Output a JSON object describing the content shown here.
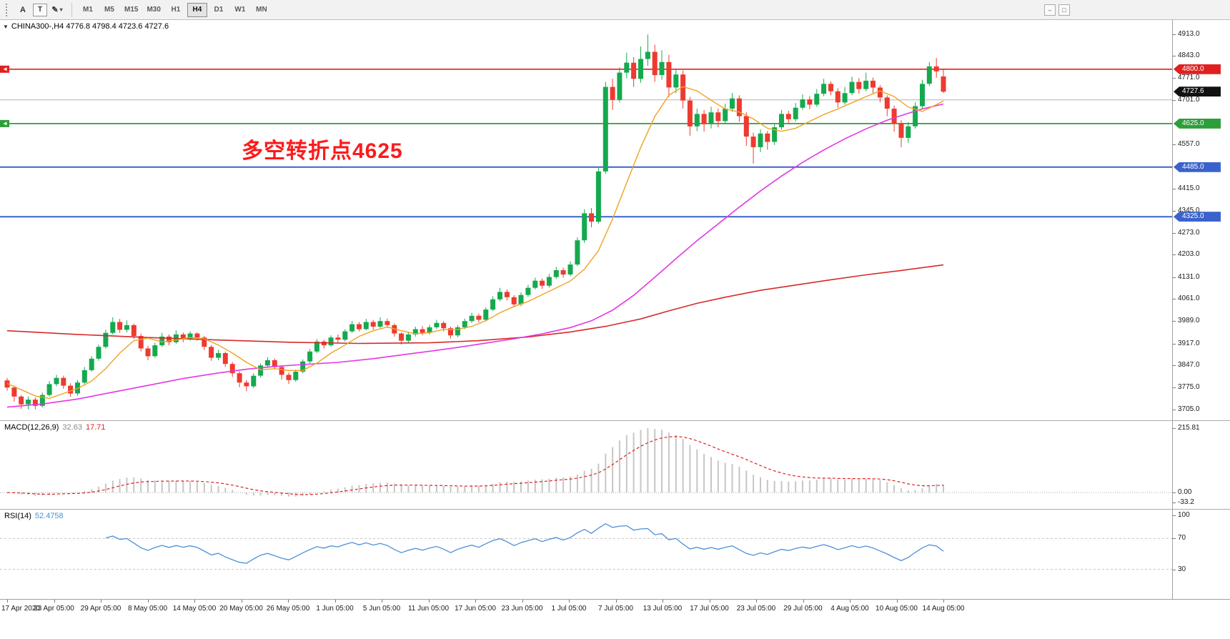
{
  "colors": {
    "up": "#15a94f",
    "down": "#ee3a2f",
    "ma_fast": "#efa322",
    "ma_mid": "#e437e4",
    "ma_slow": "#d62a2a",
    "macd_hist": "#c6c6c6",
    "macd_signal": "#e02020",
    "rsi": "#4a90d9"
  },
  "icons": {
    "expander": "▼",
    "caret": "▾"
  },
  "toolbar": {
    "tools": [
      {
        "name": "annotation-a",
        "glyph": "A"
      },
      {
        "name": "text-label",
        "glyph": "T"
      },
      {
        "name": "draw-shapes",
        "glyph": "✎"
      }
    ],
    "timeframes": [
      "M1",
      "M5",
      "M15",
      "M30",
      "H1",
      "H4",
      "D1",
      "W1",
      "MN"
    ],
    "active_timeframe": "H4",
    "mini_buttons": [
      {
        "name": "minimize",
        "glyph": "–"
      },
      {
        "name": "restore",
        "glyph": "□"
      }
    ]
  },
  "main_chart": {
    "symbol_line": "CHINA300-,H4  4776.8 4798.4 4723.6 4727.6",
    "annotation_text": "多空转折点4625",
    "price_ticks": [
      "4913.0",
      "4843.0",
      "4771.0",
      "4701.0",
      "4557.0",
      "4415.0",
      "4345.0",
      "4273.0",
      "4203.0",
      "4131.0",
      "4061.0",
      "3989.0",
      "3917.0",
      "3847.0",
      "3775.0",
      "3705.0"
    ],
    "tagged_prices": [
      {
        "label": "4800.0",
        "value": 4800.0,
        "color": "#e02020"
      },
      {
        "label": "4727.6",
        "value": 4727.6,
        "color": "#111111"
      },
      {
        "label": "4625.0",
        "value": 4625.0,
        "color": "#2e9e3a"
      },
      {
        "label": "4485.0",
        "value": 4485.0,
        "color": "#3b62cc"
      },
      {
        "label": "4325.0",
        "value": 4325.0,
        "color": "#3b62cc"
      }
    ]
  },
  "macd_panel": {
    "label": "MACD(12,26,9)",
    "value_main": "32.63",
    "value_signal": "17.71",
    "scale": [
      "215.81",
      "0.00",
      "-33.2"
    ]
  },
  "rsi_panel": {
    "label": "RSI(14)",
    "value": "52.4758",
    "scale": [
      "100",
      "70",
      "30"
    ]
  },
  "time_axis": [
    "17 Apr 2020",
    "23 Apr 05:00",
    "29 Apr 05:00",
    "8 May 05:00",
    "14 May 05:00",
    "20 May 05:00",
    "26 May 05:00",
    "1 Jun 05:00",
    "5 Jun 05:00",
    "11 Jun 05:00",
    "17 Jun 05:00",
    "23 Jun 05:00",
    "1 Jul 05:00",
    "7 Jul 05:00",
    "13 Jul 05:00",
    "17 Jul 05:00",
    "23 Jul 05:00",
    "29 Jul 05:00",
    "4 Aug 05:00",
    "10 Aug 05:00",
    "14 Aug 05:00"
  ],
  "chart_data": {
    "type": "candlestick",
    "symbol": "CHINA300-",
    "timeframe": "H4",
    "last_bar": {
      "open": 4776.8,
      "high": 4798.4,
      "low": 4723.6,
      "close": 4727.6
    },
    "y_range": [
      3688,
      4940
    ],
    "levels": [
      {
        "value": 4800,
        "color": "#e02020",
        "w": 1.6,
        "marker": true
      },
      {
        "value": 4701,
        "color": "#b4b4b4",
        "w": 1,
        "marker": false
      },
      {
        "value": 4625,
        "color": "#2e9e3a",
        "w": 1.8,
        "marker": true
      },
      {
        "value": 4485,
        "color": "#3b62cc",
        "w": 2,
        "marker": false
      },
      {
        "value": 4325,
        "color": "#3b62cc",
        "w": 2,
        "marker": false
      }
    ],
    "candles": [
      [
        3798,
        3806,
        3765,
        3775
      ],
      [
        3775,
        3781,
        3730,
        3746
      ],
      [
        3746,
        3751,
        3706,
        3721
      ],
      [
        3721,
        3746,
        3705,
        3736
      ],
      [
        3736,
        3743,
        3705,
        3716
      ],
      [
        3716,
        3759,
        3711,
        3751
      ],
      [
        3751,
        3796,
        3746,
        3786
      ],
      [
        3786,
        3816,
        3779,
        3806
      ],
      [
        3806,
        3813,
        3771,
        3781
      ],
      [
        3781,
        3789,
        3745,
        3756
      ],
      [
        3756,
        3799,
        3749,
        3791
      ],
      [
        3791,
        3841,
        3786,
        3831
      ],
      [
        3831,
        3876,
        3826,
        3868
      ],
      [
        3868,
        3913,
        3861,
        3906
      ],
      [
        3906,
        3961,
        3901,
        3951
      ],
      [
        3951,
        4001,
        3946,
        3986
      ],
      [
        3986,
        3996,
        3951,
        3961
      ],
      [
        3961,
        3991,
        3953,
        3976
      ],
      [
        3976,
        3981,
        3931,
        3941
      ],
      [
        3941,
        3949,
        3891,
        3901
      ],
      [
        3901,
        3909,
        3863,
        3876
      ],
      [
        3876,
        3919,
        3871,
        3911
      ],
      [
        3911,
        3951,
        3906,
        3939
      ],
      [
        3939,
        3946,
        3911,
        3921
      ],
      [
        3921,
        3959,
        3916,
        3946
      ],
      [
        3946,
        3953,
        3921,
        3931
      ],
      [
        3931,
        3956,
        3926,
        3949
      ],
      [
        3949,
        3953,
        3926,
        3936
      ],
      [
        3936,
        3941,
        3896,
        3906
      ],
      [
        3906,
        3911,
        3861,
        3871
      ],
      [
        3871,
        3896,
        3863,
        3886
      ],
      [
        3886,
        3891,
        3841,
        3851
      ],
      [
        3851,
        3857,
        3809,
        3821
      ],
      [
        3821,
        3827,
        3776,
        3791
      ],
      [
        3791,
        3799,
        3763,
        3779
      ],
      [
        3779,
        3821,
        3773,
        3813
      ],
      [
        3813,
        3853,
        3807,
        3846
      ],
      [
        3846,
        3873,
        3839,
        3863
      ],
      [
        3863,
        3869,
        3833,
        3841
      ],
      [
        3841,
        3847,
        3801,
        3816
      ],
      [
        3816,
        3823,
        3787,
        3799
      ],
      [
        3799,
        3833,
        3793,
        3826
      ],
      [
        3826,
        3866,
        3821,
        3859
      ],
      [
        3859,
        3899,
        3853,
        3891
      ],
      [
        3891,
        3931,
        3886,
        3923
      ],
      [
        3923,
        3929,
        3901,
        3911
      ],
      [
        3911,
        3943,
        3906,
        3936
      ],
      [
        3936,
        3946,
        3919,
        3929
      ],
      [
        3929,
        3963,
        3923,
        3956
      ],
      [
        3956,
        3989,
        3951,
        3979
      ],
      [
        3979,
        3986,
        3956,
        3963
      ],
      [
        3963,
        3996,
        3959,
        3986
      ],
      [
        3986,
        3993,
        3961,
        3971
      ],
      [
        3971,
        4001,
        3966,
        3989
      ],
      [
        3989,
        3997,
        3967,
        3976
      ],
      [
        3976,
        3981,
        3939,
        3949
      ],
      [
        3949,
        3953,
        3913,
        3926
      ],
      [
        3926,
        3953,
        3919,
        3946
      ],
      [
        3946,
        3971,
        3939,
        3963
      ],
      [
        3963,
        3973,
        3943,
        3951
      ],
      [
        3951,
        3977,
        3945,
        3969
      ],
      [
        3969,
        3993,
        3963,
        3983
      ],
      [
        3983,
        3989,
        3956,
        3966
      ],
      [
        3966,
        3971,
        3933,
        3943
      ],
      [
        3943,
        3976,
        3937,
        3969
      ],
      [
        3969,
        3997,
        3963,
        3989
      ],
      [
        3989,
        4016,
        3983,
        4006
      ],
      [
        4006,
        4013,
        3985,
        3993
      ],
      [
        3993,
        4033,
        3989,
        4026
      ],
      [
        4026,
        4069,
        4021,
        4059
      ],
      [
        4059,
        4096,
        4053,
        4083
      ],
      [
        4083,
        4091,
        4056,
        4066
      ],
      [
        4066,
        4073,
        4033,
        4043
      ],
      [
        4043,
        4081,
        4037,
        4073
      ],
      [
        4073,
        4106,
        4067,
        4096
      ],
      [
        4096,
        4129,
        4091,
        4119
      ],
      [
        4119,
        4126,
        4093,
        4103
      ],
      [
        4103,
        4141,
        4097,
        4131
      ],
      [
        4131,
        4163,
        4125,
        4153
      ],
      [
        4153,
        4161,
        4129,
        4139
      ],
      [
        4139,
        4181,
        4133,
        4171
      ],
      [
        4171,
        4259,
        4166,
        4249
      ],
      [
        4249,
        4349,
        4241,
        4336
      ],
      [
        4336,
        4353,
        4291,
        4309
      ],
      [
        4309,
        4486,
        4303,
        4471
      ],
      [
        4471,
        4759,
        4463,
        4743
      ],
      [
        4743,
        4769,
        4669,
        4701
      ],
      [
        4701,
        4806,
        4693,
        4789
      ],
      [
        4789,
        4853,
        4771,
        4821
      ],
      [
        4821,
        4839,
        4743,
        4769
      ],
      [
        4769,
        4873,
        4756,
        4833
      ],
      [
        4833,
        4912,
        4811,
        4856
      ],
      [
        4856,
        4879,
        4759,
        4781
      ],
      [
        4781,
        4861,
        4766,
        4823
      ],
      [
        4823,
        4846,
        4711,
        4741
      ],
      [
        4741,
        4801,
        4723,
        4783
      ],
      [
        4783,
        4796,
        4673,
        4699
      ],
      [
        4699,
        4711,
        4586,
        4616
      ],
      [
        4616,
        4673,
        4601,
        4656
      ],
      [
        4656,
        4669,
        4599,
        4623
      ],
      [
        4623,
        4679,
        4609,
        4661
      ],
      [
        4661,
        4673,
        4613,
        4633
      ],
      [
        4633,
        4689,
        4626,
        4673
      ],
      [
        4673,
        4723,
        4663,
        4706
      ],
      [
        4706,
        4716,
        4631,
        4649
      ],
      [
        4649,
        4661,
        4553,
        4583
      ],
      [
        4583,
        4596,
        4496,
        4549
      ],
      [
        4549,
        4606,
        4533,
        4593
      ],
      [
        4593,
        4601,
        4541,
        4566
      ],
      [
        4566,
        4626,
        4556,
        4613
      ],
      [
        4613,
        4669,
        4606,
        4656
      ],
      [
        4656,
        4666,
        4623,
        4639
      ],
      [
        4639,
        4691,
        4631,
        4676
      ],
      [
        4676,
        4719,
        4669,
        4703
      ],
      [
        4703,
        4713,
        4671,
        4686
      ],
      [
        4686,
        4736,
        4679,
        4721
      ],
      [
        4721,
        4769,
        4713,
        4753
      ],
      [
        4753,
        4761,
        4716,
        4729
      ],
      [
        4729,
        4739,
        4676,
        4693
      ],
      [
        4693,
        4743,
        4686,
        4723
      ],
      [
        4723,
        4776,
        4716,
        4759
      ],
      [
        4759,
        4771,
        4721,
        4736
      ],
      [
        4736,
        4789,
        4729,
        4763
      ],
      [
        4763,
        4773,
        4723,
        4741
      ],
      [
        4741,
        4749,
        4693,
        4709
      ],
      [
        4709,
        4716,
        4649,
        4673
      ],
      [
        4673,
        4683,
        4599,
        4626
      ],
      [
        4626,
        4636,
        4549,
        4579
      ],
      [
        4579,
        4629,
        4563,
        4616
      ],
      [
        4616,
        4693,
        4609,
        4681
      ],
      [
        4681,
        4766,
        4673,
        4753
      ],
      [
        4753,
        4823,
        4746,
        4809
      ],
      [
        4809,
        4836,
        4773,
        4793
      ],
      [
        4776.8,
        4798.4,
        4723.6,
        4727.6
      ]
    ],
    "ma_fast": [
      [
        0,
        3788
      ],
      [
        2,
        3768
      ],
      [
        4,
        3748
      ],
      [
        6,
        3740
      ],
      [
        8,
        3756
      ],
      [
        10,
        3772
      ],
      [
        12,
        3796
      ],
      [
        14,
        3836
      ],
      [
        16,
        3886
      ],
      [
        18,
        3926
      ],
      [
        20,
        3934
      ],
      [
        22,
        3922
      ],
      [
        24,
        3928
      ],
      [
        26,
        3936
      ],
      [
        28,
        3932
      ],
      [
        30,
        3912
      ],
      [
        32,
        3886
      ],
      [
        34,
        3856
      ],
      [
        36,
        3832
      ],
      [
        38,
        3836
      ],
      [
        40,
        3830
      ],
      [
        42,
        3830
      ],
      [
        44,
        3854
      ],
      [
        46,
        3886
      ],
      [
        48,
        3912
      ],
      [
        50,
        3940
      ],
      [
        52,
        3958
      ],
      [
        54,
        3970
      ],
      [
        56,
        3958
      ],
      [
        58,
        3948
      ],
      [
        60,
        3952
      ],
      [
        62,
        3962
      ],
      [
        64,
        3962
      ],
      [
        66,
        3972
      ],
      [
        68,
        3990
      ],
      [
        70,
        4016
      ],
      [
        72,
        4036
      ],
      [
        74,
        4052
      ],
      [
        76,
        4074
      ],
      [
        78,
        4096
      ],
      [
        80,
        4118
      ],
      [
        82,
        4156
      ],
      [
        84,
        4216
      ],
      [
        86,
        4318
      ],
      [
        88,
        4434
      ],
      [
        90,
        4548
      ],
      [
        92,
        4648
      ],
      [
        94,
        4716
      ],
      [
        96,
        4744
      ],
      [
        98,
        4730
      ],
      [
        100,
        4700
      ],
      [
        102,
        4672
      ],
      [
        104,
        4662
      ],
      [
        106,
        4640
      ],
      [
        108,
        4610
      ],
      [
        110,
        4600
      ],
      [
        112,
        4610
      ],
      [
        114,
        4632
      ],
      [
        116,
        4654
      ],
      [
        118,
        4672
      ],
      [
        120,
        4692
      ],
      [
        122,
        4712
      ],
      [
        124,
        4730
      ],
      [
        126,
        4712
      ],
      [
        128,
        4678
      ],
      [
        130,
        4664
      ],
      [
        132,
        4686
      ],
      [
        133,
        4698
      ]
    ],
    "ma_mid": [
      [
        0,
        3712
      ],
      [
        5,
        3722
      ],
      [
        10,
        3738
      ],
      [
        15,
        3760
      ],
      [
        20,
        3782
      ],
      [
        25,
        3804
      ],
      [
        30,
        3822
      ],
      [
        34,
        3834
      ],
      [
        38,
        3843
      ],
      [
        42,
        3849
      ],
      [
        47,
        3856
      ],
      [
        52,
        3868
      ],
      [
        56,
        3880
      ],
      [
        60,
        3892
      ],
      [
        64,
        3904
      ],
      [
        68,
        3918
      ],
      [
        72,
        3932
      ],
      [
        76,
        3948
      ],
      [
        80,
        3968
      ],
      [
        83,
        3990
      ],
      [
        86,
        4024
      ],
      [
        89,
        4072
      ],
      [
        92,
        4130
      ],
      [
        95,
        4190
      ],
      [
        98,
        4248
      ],
      [
        101,
        4302
      ],
      [
        104,
        4356
      ],
      [
        107,
        4408
      ],
      [
        110,
        4456
      ],
      [
        113,
        4500
      ],
      [
        116,
        4540
      ],
      [
        119,
        4576
      ],
      [
        122,
        4608
      ],
      [
        125,
        4636
      ],
      [
        128,
        4658
      ],
      [
        130,
        4672
      ],
      [
        133,
        4688
      ]
    ],
    "ma_slow": [
      [
        0,
        3958
      ],
      [
        10,
        3946
      ],
      [
        20,
        3936
      ],
      [
        30,
        3928
      ],
      [
        40,
        3921
      ],
      [
        50,
        3917
      ],
      [
        60,
        3919
      ],
      [
        67,
        3926
      ],
      [
        74,
        3938
      ],
      [
        80,
        3954
      ],
      [
        85,
        3972
      ],
      [
        90,
        3996
      ],
      [
        94,
        4022
      ],
      [
        98,
        4046
      ],
      [
        102,
        4066
      ],
      [
        107,
        4088
      ],
      [
        112,
        4105
      ],
      [
        117,
        4122
      ],
      [
        122,
        4138
      ],
      [
        127,
        4152
      ],
      [
        133,
        4170
      ]
    ],
    "macd": {
      "fast": 12,
      "slow": 26,
      "signal": 9,
      "range": [
        -33.2,
        215.81
      ]
    },
    "rsi": {
      "period": 14,
      "range": [
        0,
        100
      ],
      "levels": [
        70,
        30
      ]
    }
  }
}
